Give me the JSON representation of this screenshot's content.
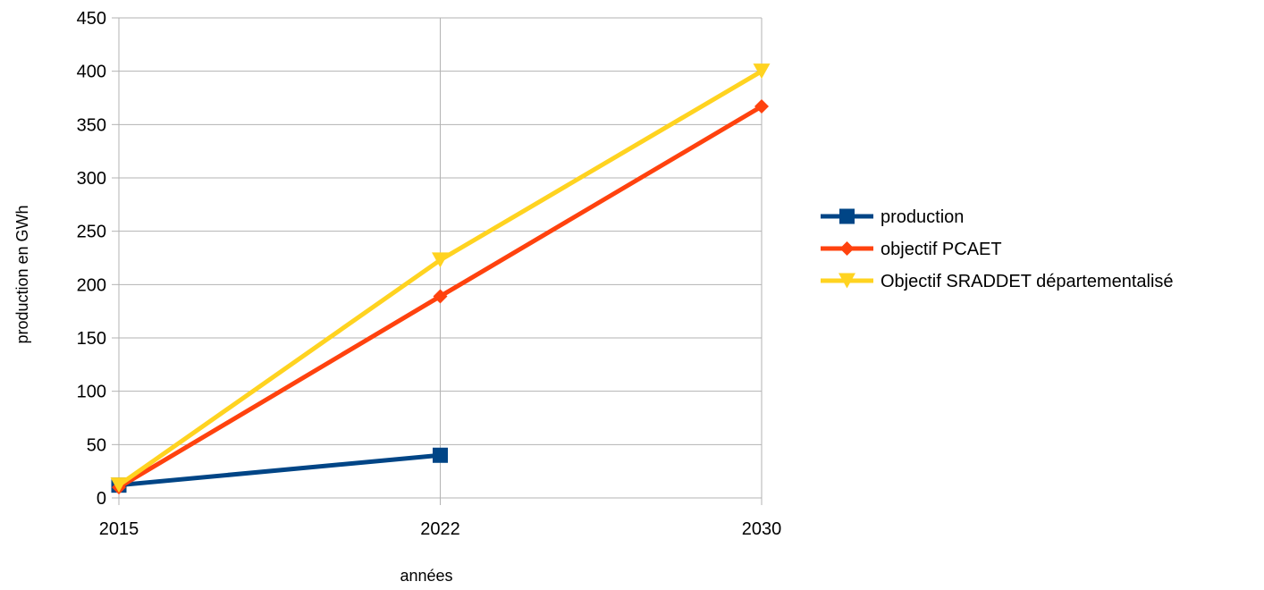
{
  "chart_data": {
    "type": "line",
    "title": "",
    "xlabel": "années",
    "ylabel": "production en GWh",
    "categories": [
      "2015",
      "2022",
      "2030"
    ],
    "ylim": [
      0,
      450
    ],
    "yticks": [
      0,
      50,
      100,
      150,
      200,
      250,
      300,
      350,
      400,
      450
    ],
    "grid": true,
    "legend_position": "right",
    "series": [
      {
        "name": "production",
        "values": [
          12,
          40,
          null
        ],
        "color": "#004586",
        "marker": "square"
      },
      {
        "name": "objectif PCAET",
        "values": [
          10,
          189,
          367
        ],
        "color": "#ff420e",
        "marker": "diamond"
      },
      {
        "name": "Objectif SRADDET départementalisé",
        "values": [
          12,
          223,
          400
        ],
        "color": "#ffd320",
        "marker": "triangle-down"
      }
    ]
  }
}
